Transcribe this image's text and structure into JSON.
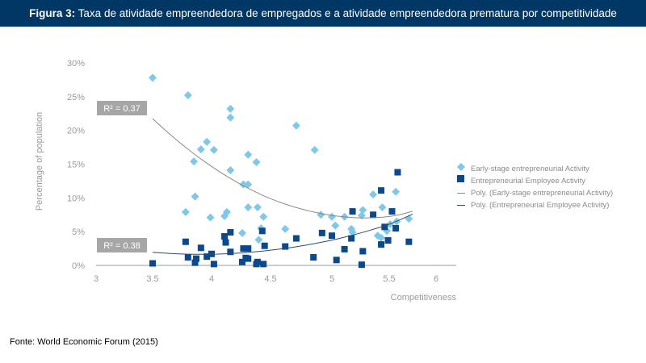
{
  "header": {
    "label": "Figura 3:",
    "title": "Taxa de atividade empreendedora de empregados e a atividade empreendedora prematura por competitividade"
  },
  "source": "Fonte: World Economic Forum (2015)",
  "chart_data": {
    "type": "scatter",
    "xlabel": "Competitiveness",
    "ylabel": "Percentage of population",
    "xlim": [
      3,
      6.2
    ],
    "ylim": [
      0,
      30
    ],
    "x_ticks": [
      "3",
      "3.5",
      "4",
      "4.5",
      "5",
      "5.5",
      "6"
    ],
    "y_ticks": [
      "0%",
      "5%",
      "10%",
      "15%",
      "20%",
      "25%",
      "30%"
    ],
    "grid": false,
    "legend_position": "right",
    "colors": {
      "early": "#7ec8ea",
      "employee": "#0a4a8c",
      "trend_early": "#8a8a8a",
      "trend_employee": "#2d4a6e",
      "r2_box": "#a6a6a6"
    },
    "series": [
      {
        "name": "Early-stage entrepreneurial Activity",
        "marker": "diamond",
        "trend": "Poly. (Early-stage entrepreneurial Activity)",
        "r2": "R² = 0.37",
        "points": [
          [
            3.5,
            27.8
          ],
          [
            3.8,
            25.2
          ],
          [
            4.16,
            23.2
          ],
          [
            4.16,
            21.9
          ],
          [
            3.96,
            18.3
          ],
          [
            3.91,
            17.2
          ],
          [
            4.02,
            17.1
          ],
          [
            3.85,
            15.4
          ],
          [
            4.16,
            14.1
          ],
          [
            4.31,
            16.4
          ],
          [
            4.38,
            15.3
          ],
          [
            4.27,
            12
          ],
          [
            4.31,
            12
          ],
          [
            4.31,
            8.6
          ],
          [
            4.39,
            8.6
          ],
          [
            3.86,
            10.2
          ],
          [
            3.78,
            7.9
          ],
          [
            3.99,
            7.1
          ],
          [
            4.11,
            7.3
          ],
          [
            4.13,
            7.9
          ],
          [
            4.44,
            7.2
          ],
          [
            4.26,
            4.8
          ],
          [
            4.42,
            5.5
          ],
          [
            4.4,
            3.8
          ],
          [
            4.62,
            5.4
          ],
          [
            4.71,
            20.7
          ],
          [
            4.86,
            17.1
          ],
          [
            4.91,
            7.5
          ],
          [
            5.0,
            7.2
          ],
          [
            5.11,
            7.2
          ],
          [
            5.03,
            5.9
          ],
          [
            5.17,
            5.4
          ],
          [
            5.18,
            4.9
          ],
          [
            5.26,
            7.4
          ],
          [
            5.27,
            8.2
          ],
          [
            5.36,
            10.5
          ],
          [
            5.44,
            8.6
          ],
          [
            5.57,
            10.9
          ],
          [
            5.4,
            4.4
          ],
          [
            5.43,
            4.1
          ],
          [
            5.48,
            5.1
          ],
          [
            5.51,
            6.1
          ],
          [
            5.58,
            6.5
          ],
          [
            5.71,
            6.9
          ]
        ]
      },
      {
        "name": "Entrepreneurial Employee Activity",
        "marker": "square",
        "trend": "Poly. (Entrepreneurial Employee Activity)",
        "r2": "R² = 0.38",
        "points": [
          [
            3.5,
            0.3
          ],
          [
            3.78,
            3.5
          ],
          [
            3.8,
            1.2
          ],
          [
            3.87,
            1
          ],
          [
            3.86,
            0.4
          ],
          [
            3.91,
            2.6
          ],
          [
            3.96,
            1.3
          ],
          [
            4.0,
            1.7
          ],
          [
            4.02,
            0.2
          ],
          [
            4.11,
            4.3
          ],
          [
            4.12,
            3.4
          ],
          [
            4.16,
            4.9
          ],
          [
            4.16,
            2
          ],
          [
            4.26,
            0.5
          ],
          [
            4.27,
            2.5
          ],
          [
            4.31,
            2.5
          ],
          [
            4.29,
            1.1
          ],
          [
            4.31,
            1
          ],
          [
            4.38,
            0.2
          ],
          [
            4.39,
            0.5
          ],
          [
            4.44,
            0.2
          ],
          [
            4.43,
            5.1
          ],
          [
            4.45,
            2.9
          ],
          [
            4.62,
            2.8
          ],
          [
            4.71,
            4
          ],
          [
            4.92,
            4.8
          ],
          [
            5.0,
            4.4
          ],
          [
            4.85,
            1.2
          ],
          [
            5.04,
            0.8
          ],
          [
            5.11,
            2.4
          ],
          [
            5.17,
            4
          ],
          [
            5.27,
            2.1
          ],
          [
            5.26,
            0.1
          ],
          [
            5.18,
            8
          ],
          [
            5.36,
            7.5
          ],
          [
            5.43,
            11.1
          ],
          [
            5.43,
            3.1
          ],
          [
            5.49,
            3.7
          ],
          [
            5.46,
            5.7
          ],
          [
            5.53,
            8
          ],
          [
            5.57,
            5.5
          ],
          [
            5.59,
            13.8
          ],
          [
            5.71,
            3.5
          ]
        ]
      }
    ]
  }
}
